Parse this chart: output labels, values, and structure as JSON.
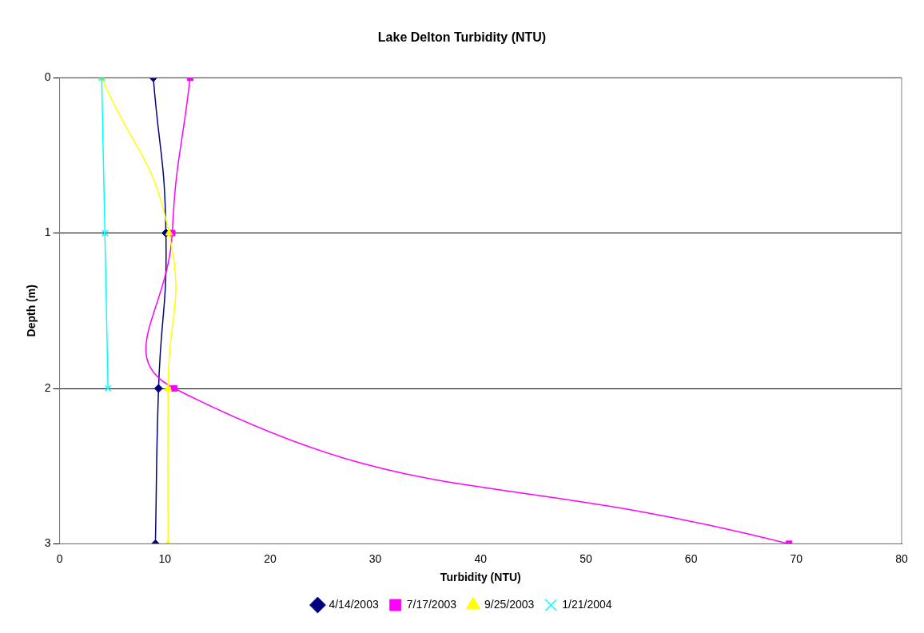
{
  "chart_data": {
    "type": "line",
    "title": "Lake Delton Turbidity (NTU)",
    "xlabel": "Turbidity (NTU)",
    "ylabel": "Depth (m)",
    "xlim": [
      0,
      80
    ],
    "xticks": [
      0,
      10,
      20,
      30,
      40,
      50,
      60,
      70,
      80
    ],
    "ylim": [
      3,
      0
    ],
    "yticks": [
      0,
      1,
      2,
      3
    ],
    "grid": "y",
    "legend": "bottom",
    "line_style": "solid",
    "series": [
      {
        "name": "4/14/2003",
        "color": "#000080",
        "marker": "diamond",
        "x": [
          8.9,
          10.1,
          9.4,
          9.1
        ],
        "values": [
          0,
          1,
          2,
          3
        ]
      },
      {
        "name": "7/17/2003",
        "color": "#ff00ff",
        "marker": "square",
        "x": [
          12.4,
          10.7,
          10.9,
          69.3
        ],
        "values": [
          0,
          1,
          2,
          3
        ]
      },
      {
        "name": "9/25/2003",
        "color": "#ffff00",
        "marker": "triangle",
        "x": [
          4.0,
          10.4,
          10.3,
          10.3
        ],
        "values": [
          0,
          1,
          2,
          3
        ]
      },
      {
        "name": "1/21/2004",
        "color": "#00ffff",
        "marker": "cross",
        "x": [
          4.0,
          4.3,
          4.6
        ],
        "values": [
          0,
          1,
          2
        ]
      }
    ]
  }
}
